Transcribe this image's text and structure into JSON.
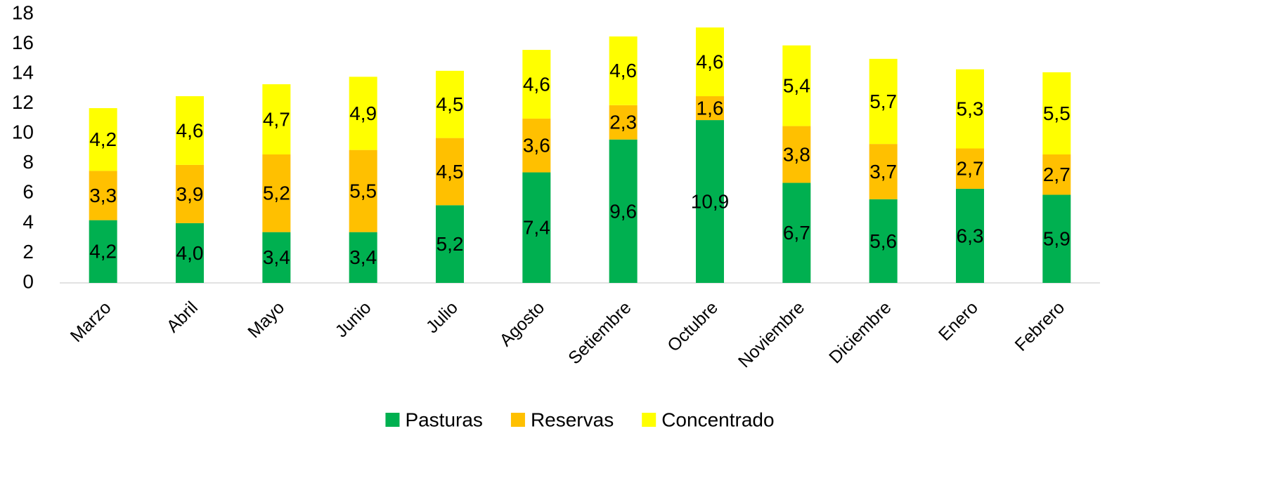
{
  "chart_data": {
    "type": "stacked_bar",
    "categories": [
      "Marzo",
      "Abril",
      "Mayo",
      "Junio",
      "Julio",
      "Agosto",
      "Setiembre",
      "Octubre",
      "Noviembre",
      "Diciembre",
      "Enero",
      "Febrero"
    ],
    "series": [
      {
        "name": "Pasturas",
        "color": "#00b050",
        "values": [
          4.2,
          4.0,
          3.4,
          3.4,
          5.2,
          7.4,
          9.6,
          10.9,
          6.7,
          5.6,
          6.3,
          5.9
        ],
        "value_labels": [
          "4,2",
          "4,0",
          "3,4",
          "3,4",
          "5,2",
          "7,4",
          "9,6",
          "10,9",
          "6,7",
          "5,6",
          "6,3",
          "5,9"
        ]
      },
      {
        "name": "Reservas",
        "color": "#ffc000",
        "values": [
          3.3,
          3.9,
          5.2,
          5.5,
          4.5,
          3.6,
          2.3,
          1.6,
          3.8,
          3.7,
          2.7,
          2.7
        ],
        "value_labels": [
          "3,3",
          "3,9",
          "5,2",
          "5,5",
          "4,5",
          "3,6",
          "2,3",
          "1,6",
          "3,8",
          "3,7",
          "2,7",
          "2,7"
        ]
      },
      {
        "name": "Concentrado",
        "color": "#ffff00",
        "values": [
          4.2,
          4.6,
          4.7,
          4.9,
          4.5,
          4.6,
          4.6,
          4.6,
          5.4,
          5.7,
          5.3,
          5.5
        ],
        "value_labels": [
          "4,2",
          "4,6",
          "4,7",
          "4,9",
          "4,5",
          "4,6",
          "4,6",
          "4,6",
          "5,4",
          "5,7",
          "5,3",
          "5,5"
        ]
      }
    ],
    "ylim": [
      0,
      18
    ],
    "yticks": [
      0,
      2,
      4,
      6,
      8,
      10,
      12,
      14,
      16,
      18
    ],
    "legend": "bottom"
  }
}
